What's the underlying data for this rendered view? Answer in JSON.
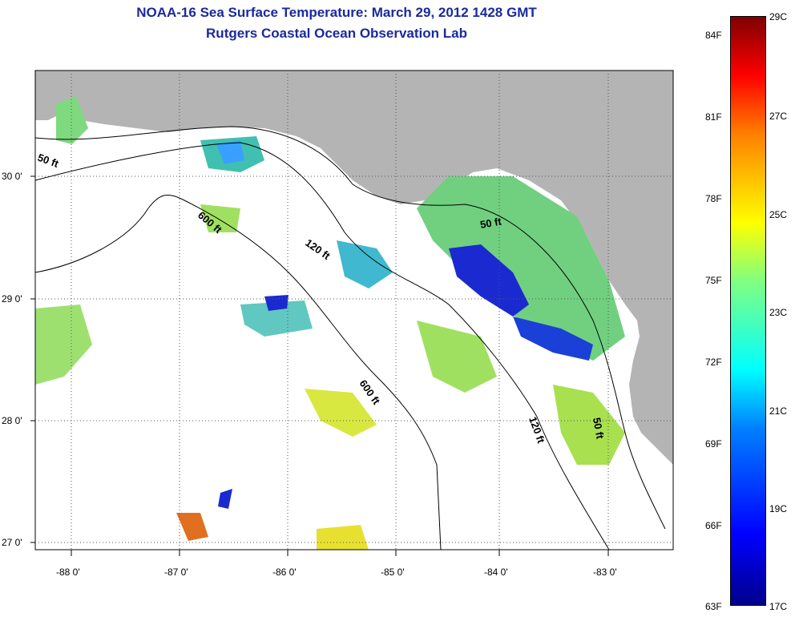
{
  "title": "NOAA-16 Sea Surface Temperature:  March 29, 2012 1428 GMT",
  "subtitle": "Rutgers Coastal Ocean Observation Lab",
  "lon_ticks": [
    "-88 0'",
    "-87 0'",
    "-86 0'",
    "-85 0'",
    "-84 0'",
    "-83 0'"
  ],
  "lat_ticks": [
    "30 0'",
    "29 0'",
    "28 0'",
    "27 0'"
  ],
  "contour_labels": [
    "50 ft",
    "600 ft",
    "120 ft",
    "50 ft",
    "600 ft",
    "120 ft",
    "50 ft"
  ],
  "colorbar": {
    "f_labels": [
      "84F",
      "81F",
      "78F",
      "75F",
      "72F",
      "69F",
      "66F",
      "63F"
    ],
    "c_labels": [
      "29C",
      "27C",
      "25C",
      "23C",
      "21C",
      "19C",
      "17C"
    ],
    "min_color": "#00008b",
    "max_color": "#800000"
  },
  "colors": {
    "land": "#b4b4b4",
    "ocean_no_data": "#ffffff",
    "title": "#1a2a9c"
  }
}
